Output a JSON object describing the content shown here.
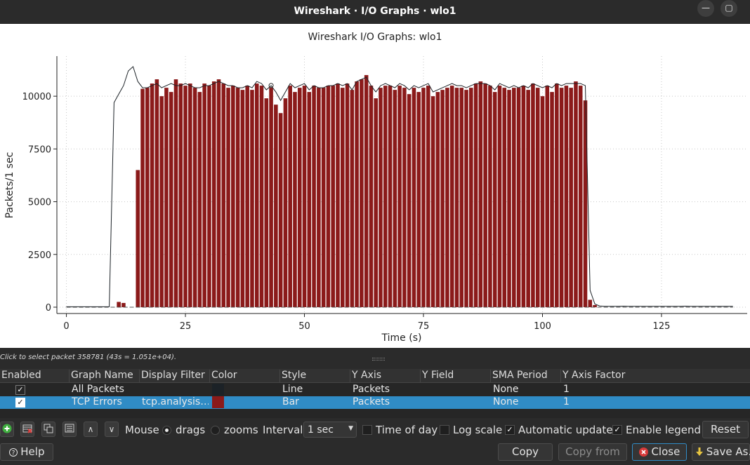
{
  "window": {
    "title": "Wireshark · I/O Graphs · wlo1",
    "minimize_label": "—",
    "restore_label": "▢"
  },
  "chart_data": {
    "type": "bar",
    "title": "Wireshark I/O Graphs: wlo1",
    "xlabel": "Time (s)",
    "ylabel": "Packets/1 sec",
    "xlim": [
      -2,
      143
    ],
    "ylim": [
      -300,
      11900
    ],
    "x_ticks": [
      0,
      25,
      50,
      75,
      100,
      125
    ],
    "y_ticks": [
      0,
      2500,
      5000,
      7500,
      10000
    ],
    "grid": true,
    "legend": "none",
    "x": [
      0,
      1,
      2,
      3,
      4,
      5,
      6,
      7,
      8,
      9,
      10,
      11,
      12,
      13,
      14,
      15,
      16,
      17,
      18,
      19,
      20,
      21,
      22,
      23,
      24,
      25,
      26,
      27,
      28,
      29,
      30,
      31,
      32,
      33,
      34,
      35,
      36,
      37,
      38,
      39,
      40,
      41,
      42,
      43,
      44,
      45,
      46,
      47,
      48,
      49,
      50,
      51,
      52,
      53,
      54,
      55,
      56,
      57,
      58,
      59,
      60,
      61,
      62,
      63,
      64,
      65,
      66,
      67,
      68,
      69,
      70,
      71,
      72,
      73,
      74,
      75,
      76,
      77,
      78,
      79,
      80,
      81,
      82,
      83,
      84,
      85,
      86,
      87,
      88,
      89,
      90,
      91,
      92,
      93,
      94,
      95,
      96,
      97,
      98,
      99,
      100,
      101,
      102,
      103,
      104,
      105,
      106,
      107,
      108,
      109,
      110,
      111,
      112,
      113,
      114,
      115,
      116,
      117,
      118,
      119,
      120,
      121,
      122,
      123,
      124,
      125,
      126,
      127,
      128,
      129,
      130,
      131,
      132,
      133,
      134,
      135,
      136,
      137,
      138,
      139,
      140
    ],
    "series": [
      {
        "name": "All Packets",
        "style": "line",
        "color": "#1c2227",
        "values": [
          20,
          20,
          20,
          20,
          20,
          20,
          20,
          20,
          20,
          20,
          9700,
          10100,
          10500,
          11200,
          11400,
          10700,
          10400,
          10400,
          10500,
          10600,
          10400,
          10500,
          10600,
          10500,
          10500,
          10600,
          10500,
          10400,
          10400,
          10500,
          10500,
          10600,
          10700,
          10600,
          10500,
          10500,
          10400,
          10400,
          10500,
          10400,
          10700,
          10600,
          10300,
          10500,
          10200,
          9800,
          10200,
          10600,
          10400,
          10500,
          10600,
          10300,
          10500,
          10400,
          10400,
          10500,
          10500,
          10600,
          10500,
          10600,
          10300,
          10700,
          10800,
          10900,
          10500,
          10200,
          10500,
          10600,
          10500,
          10400,
          10600,
          10500,
          10300,
          10500,
          10400,
          10500,
          10600,
          10200,
          10300,
          10400,
          10500,
          10600,
          10500,
          10500,
          10400,
          10500,
          10600,
          10600,
          10600,
          10500,
          10300,
          10600,
          10500,
          10400,
          10500,
          10400,
          10500,
          10400,
          10600,
          10500,
          10400,
          10500,
          10400,
          10600,
          10500,
          10600,
          10600,
          10600,
          10600,
          10500,
          800,
          150,
          60,
          40,
          40,
          40,
          40,
          50,
          40,
          40,
          40,
          40,
          40,
          40,
          40,
          40,
          40,
          40,
          40,
          40,
          50,
          40,
          40,
          40,
          40,
          40,
          40,
          40,
          40,
          40,
          40
        ]
      },
      {
        "name": "TCP Errors",
        "style": "bar",
        "color": "#8b1a1a",
        "values": [
          0,
          0,
          0,
          0,
          0,
          0,
          0,
          0,
          0,
          0,
          0,
          250,
          200,
          0,
          0,
          6500,
          10350,
          10400,
          10600,
          10800,
          10000,
          10400,
          10200,
          10800,
          10600,
          10500,
          10600,
          10400,
          10200,
          10600,
          10500,
          10700,
          10800,
          10600,
          10400,
          10500,
          10400,
          10300,
          10500,
          10300,
          10600,
          10500,
          9900,
          10400,
          9600,
          9200,
          9900,
          10500,
          10200,
          10400,
          10500,
          10200,
          10500,
          10400,
          10400,
          10500,
          10500,
          10600,
          10400,
          10600,
          10300,
          10700,
          10800,
          11000,
          10500,
          9900,
          10400,
          10500,
          10500,
          10300,
          10500,
          10400,
          10100,
          10400,
          10200,
          10400,
          10500,
          10000,
          10200,
          10300,
          10400,
          10500,
          10400,
          10400,
          10300,
          10400,
          10600,
          10700,
          10600,
          10500,
          10200,
          10500,
          10400,
          10300,
          10400,
          10400,
          10500,
          10300,
          10600,
          10400,
          10000,
          10500,
          10200,
          10600,
          10400,
          10500,
          10400,
          10700,
          10500,
          9800,
          350,
          100,
          0,
          0,
          0,
          0,
          0,
          0,
          0,
          0,
          0,
          0,
          0,
          0,
          0,
          0,
          0,
          0,
          0,
          0,
          0,
          0,
          0,
          0,
          0,
          0,
          0,
          0,
          0,
          0,
          0
        ]
      }
    ],
    "cursor": {
      "x": 43,
      "y": 10510
    }
  },
  "status": {
    "message": "Click to select packet 358781 (43s = 1.051e+04)."
  },
  "table": {
    "columns": [
      "Enabled",
      "Graph Name",
      "Display Filter",
      "Color",
      "Style",
      "Y Axis",
      "Y Field",
      "SMA Period",
      "Y Axis Factor"
    ],
    "rows": [
      {
        "enabled": "✓",
        "name": "All Packets",
        "filter": "",
        "color": "#1c2227",
        "style": "Line",
        "y_axis": "Packets",
        "y_field": "",
        "sma": "None",
        "factor": "1"
      },
      {
        "enabled": "✓",
        "name": "TCP Errors",
        "filter": "tcp.analysis…",
        "color": "#8b1a1a",
        "style": "Bar",
        "y_axis": "Packets",
        "y_field": "",
        "sma": "None",
        "factor": "1"
      }
    ]
  },
  "controls": {
    "toolbar_icons": [
      "add-graph-icon",
      "remove-graph-icon",
      "copy-graph-icon",
      "clear-graphs-icon",
      "move-up-icon",
      "move-down-icon"
    ],
    "move_up_glyph": "∧",
    "move_down_glyph": "∨",
    "mouse_label": "Mouse",
    "drags_label": "drags",
    "zooms_label": "zooms",
    "interval_label": "Interval",
    "interval_value": "1 sec",
    "time_of_day_label": "Time of day",
    "log_scale_label": "Log scale",
    "auto_update_label": "Automatic update",
    "enable_legend_label": "Enable legend",
    "check_glyph": "✓",
    "reset_label": "Reset",
    "help_label": "Help",
    "copy_label": "Copy",
    "copy_from_label": "Copy from",
    "close_label": "Close",
    "save_as_label": "Save As..."
  }
}
